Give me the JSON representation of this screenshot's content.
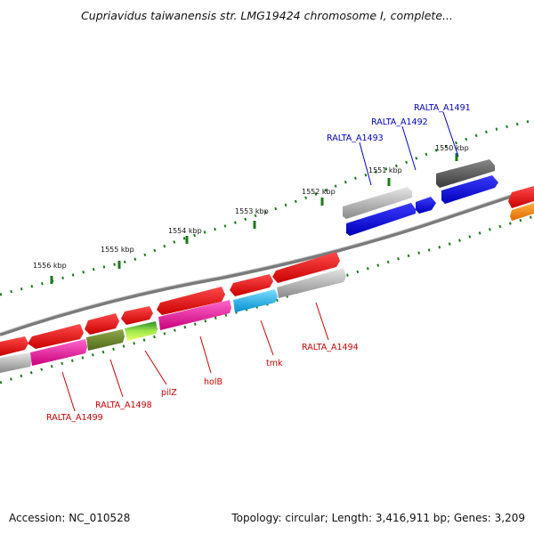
{
  "title": "Cupriavidus taiwanensis str. LMG19424 chromosome I, complete...",
  "footer": {
    "accession": "Accession: NC_010528",
    "stats": "Topology: circular; Length: 3,416,911 bp; Genes: 3,209"
  },
  "colors": {
    "backbone": "#7a7a7a",
    "tick": "#1a7a1a",
    "forward_label": "#0000cc",
    "reverse_label": "#cc0000"
  },
  "kbp_labels": [
    "1556 kbp",
    "1555 kbp",
    "1554 kbp",
    "1553 kbp",
    "1552 kbp",
    "1551 kbp",
    "1550 kbp"
  ],
  "gene_labels": {
    "RALTA_A1491": "RALTA_A1491",
    "RALTA_A1492": "RALTA_A1492",
    "RALTA_A1493": "RALTA_A1493",
    "RALTA_A1494": "RALTA_A1494",
    "tmk": "tmk",
    "holB": "holB",
    "pilZ": "pilZ",
    "RALTA_A1498": "RALTA_A1498",
    "RALTA_A1499": "RALTA_A1499"
  }
}
